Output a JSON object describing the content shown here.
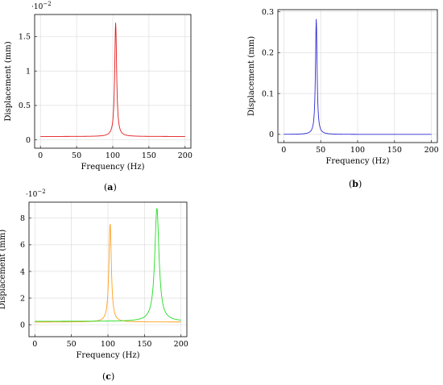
{
  "chart_data": [
    {
      "type": "line",
      "panel": "a",
      "xlabel": "Frequency (Hz)",
      "ylabel": "Displacement (mm)",
      "y_multiplier": "·10",
      "y_multiplier_exp": "−2",
      "xlim": [
        -8,
        208
      ],
      "ylim": [
        -0.12,
        1.82
      ],
      "xticks": [
        0,
        50,
        100,
        150,
        200
      ],
      "yticks": [
        0,
        0.5,
        1,
        1.5
      ],
      "ytick_labels": [
        "0",
        "0.5",
        "1",
        "1.5"
      ],
      "grid": true,
      "series": [
        {
          "color": "#e41a1c",
          "model": {
            "baseline": 0.05,
            "peaks": [
              {
                "f0": 104,
                "amp": 1.65,
                "gamma": 1.6
              }
            ]
          }
        }
      ]
    },
    {
      "type": "line",
      "panel": "b",
      "xlabel": "Frequency (Hz)",
      "ylabel": "Displacement (mm)",
      "xlim": [
        -8,
        208
      ],
      "ylim": [
        -0.02,
        0.305
      ],
      "xticks": [
        0,
        50,
        100,
        150,
        200
      ],
      "yticks": [
        0,
        0.1,
        0.2,
        0.3
      ],
      "ytick_labels": [
        "0",
        "0.1",
        "0.2",
        "0.3"
      ],
      "grid": true,
      "series": [
        {
          "color": "#2b2bd6",
          "model": {
            "baseline": 0.0,
            "peaks": [
              {
                "f0": 44,
                "amp": 0.282,
                "gamma": 1.3
              }
            ]
          }
        }
      ]
    },
    {
      "type": "line",
      "panel": "c",
      "xlabel": "Frequency (Hz)",
      "ylabel": "Displacement (mm)",
      "y_multiplier": "·10",
      "y_multiplier_exp": "−2",
      "xlim": [
        -8,
        208
      ],
      "ylim": [
        -0.9,
        9.2
      ],
      "xticks": [
        0,
        50,
        100,
        150,
        200
      ],
      "yticks": [
        0,
        2,
        4,
        6,
        8
      ],
      "ytick_labels": [
        "0",
        "2",
        "4",
        "6",
        "8"
      ],
      "grid": true,
      "series": [
        {
          "color": "#ff9f1c",
          "model": {
            "baseline": 0.2,
            "peaks": [
              {
                "f0": 103,
                "amp": 7.4,
                "gamma": 2.0
              }
            ]
          }
        },
        {
          "color": "#22dd22",
          "model": {
            "baseline": 0.25,
            "peaks": [
              {
                "f0": 167,
                "amp": 8.5,
                "gamma": 3.5
              }
            ]
          }
        }
      ]
    }
  ],
  "captions": {
    "a": "a",
    "b": "b",
    "c": "c"
  }
}
